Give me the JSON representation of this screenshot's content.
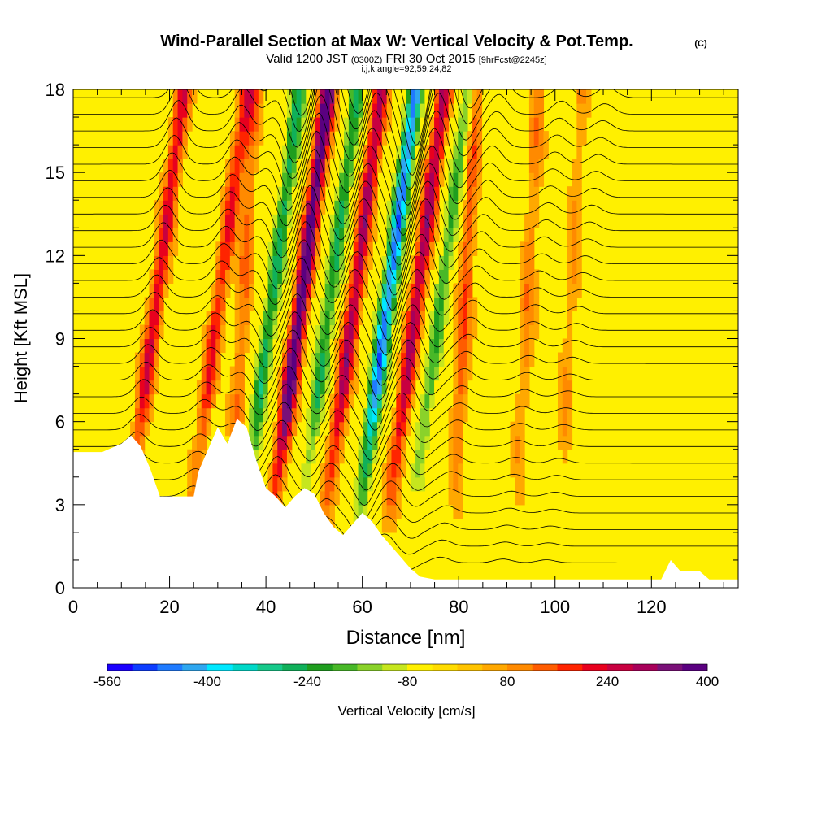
{
  "header": {
    "title": "Wind-Parallel Section at Max W: Vertical Velocity & Pot.Temp.",
    "copyright": "(C)",
    "valid_prefix": "Valid 1200 JST",
    "valid_zulu": "(0300Z)",
    "valid_date": "FRI 30 Oct 2015",
    "forecast": "[9hrFcst@2245z]",
    "indices": "i,j,k,angle=92,59,24,82"
  },
  "chart_data": {
    "type": "heatmap",
    "title": "Wind-Parallel Section at Max W: Vertical Velocity & Pot.Temp.",
    "xlabel": "Distance [nm]",
    "ylabel": "Height [Kft MSL]",
    "xlim": [
      0,
      138
    ],
    "ylim": [
      0,
      18
    ],
    "x_ticks": [
      "0",
      "20",
      "40",
      "60",
      "80",
      "100",
      "120"
    ],
    "y_ticks": [
      "0",
      "3",
      "6",
      "9",
      "12",
      "15",
      "18"
    ],
    "colorbar": {
      "label": "Vertical Velocity [cm/s]",
      "tick_labels": [
        "-560",
        "-400",
        "-240",
        "-80",
        "80",
        "240",
        "400"
      ],
      "colors": [
        "#1a00ff",
        "#0d3dff",
        "#1f7bff",
        "#2fa7f0",
        "#00e8ff",
        "#00d8c8",
        "#16c98a",
        "#10b05a",
        "#1f9e1f",
        "#48b828",
        "#8ad22a",
        "#c6e61e",
        "#fff000",
        "#ffdc00",
        "#ffc400",
        "#ffa800",
        "#ff8a00",
        "#ff5c00",
        "#ff2400",
        "#e8001e",
        "#c80040",
        "#a8005a",
        "#7a1078",
        "#5a0080"
      ]
    },
    "velocity_bands": [
      {
        "x": 14,
        "w": 236
      },
      {
        "x": 27,
        "w": 200
      },
      {
        "x": 34,
        "w": 120
      },
      {
        "x": 38,
        "w": -260
      },
      {
        "x": 44,
        "w": 420
      },
      {
        "x": 50,
        "w": -240
      },
      {
        "x": 55,
        "w": 300
      },
      {
        "x": 62,
        "w": -460
      },
      {
        "x": 68,
        "w": 300
      },
      {
        "x": 73,
        "w": -200
      },
      {
        "x": 80,
        "w": 150
      },
      {
        "x": 93,
        "w": 100
      },
      {
        "x": 102,
        "w": 80
      }
    ],
    "terrain_profile": [
      [
        0,
        4.9
      ],
      [
        6,
        4.9
      ],
      [
        10,
        5.2
      ],
      [
        12,
        5.5
      ],
      [
        14,
        5.1
      ],
      [
        16,
        4.3
      ],
      [
        18,
        3.3
      ],
      [
        25,
        3.3
      ],
      [
        26,
        4.2
      ],
      [
        28,
        5.0
      ],
      [
        30,
        5.8
      ],
      [
        32,
        5.2
      ],
      [
        34,
        6.1
      ],
      [
        36,
        5.8
      ],
      [
        38,
        4.6
      ],
      [
        40,
        3.6
      ],
      [
        42,
        3.3
      ],
      [
        44,
        2.9
      ],
      [
        46,
        3.3
      ],
      [
        48,
        3.6
      ],
      [
        50,
        3.4
      ],
      [
        52,
        2.7
      ],
      [
        54,
        2.2
      ],
      [
        56,
        1.9
      ],
      [
        58,
        2.3
      ],
      [
        60,
        2.7
      ],
      [
        62,
        2.4
      ],
      [
        64,
        1.9
      ],
      [
        66,
        1.5
      ],
      [
        68,
        1.1
      ],
      [
        70,
        0.7
      ],
      [
        72,
        0.4
      ],
      [
        75,
        0.3
      ],
      [
        122,
        0.3
      ],
      [
        124,
        1.0
      ],
      [
        126,
        0.6
      ],
      [
        130,
        0.6
      ],
      [
        132,
        0.3
      ],
      [
        138,
        0.3
      ]
    ],
    "isentrope_count": 30
  }
}
